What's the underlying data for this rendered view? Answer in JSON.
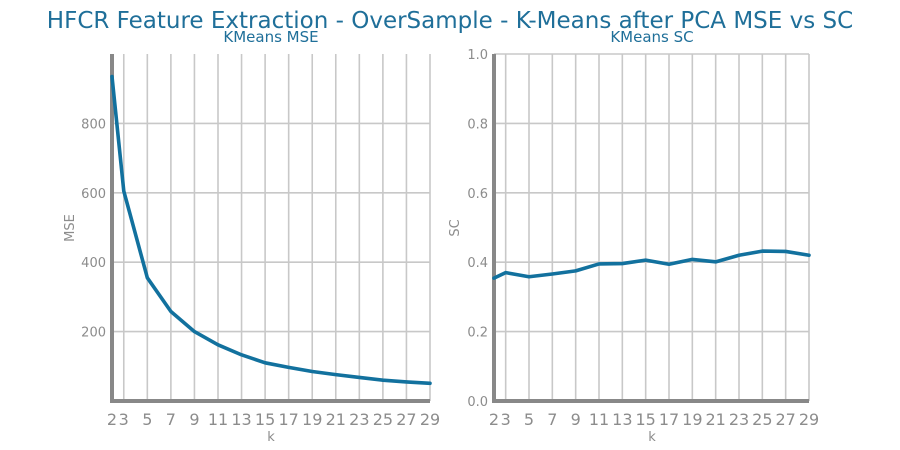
{
  "suptitle": "HFCR Feature Extraction - OverSample - K-Means after PCA MSE vs SC",
  "colors": {
    "line": "#12719e",
    "title": "#1f6f99",
    "text": "#8c8c8c",
    "grid": "#c8c8c8",
    "spine": "#888888"
  },
  "chart_data": [
    {
      "type": "line",
      "title": "KMeans MSE",
      "xlabel": "k",
      "ylabel": "MSE",
      "grid": true,
      "x": [
        2,
        3,
        5,
        7,
        9,
        11,
        13,
        15,
        17,
        19,
        21,
        23,
        25,
        27,
        29
      ],
      "x_ticks": [
        2,
        3,
        5,
        7,
        9,
        11,
        13,
        15,
        17,
        19,
        21,
        23,
        25,
        27,
        29
      ],
      "xlim": [
        2,
        29
      ],
      "ylim": [
        0,
        1000
      ],
      "y_ticks": [
        200,
        400,
        600,
        800
      ],
      "series": [
        {
          "values": [
            935,
            605,
            355,
            258,
            200,
            162,
            133,
            110,
            97,
            85,
            76,
            68,
            60,
            55,
            51
          ]
        }
      ]
    },
    {
      "type": "line",
      "title": "KMeans SC",
      "xlabel": "k",
      "ylabel": "SC",
      "grid": true,
      "x": [
        2,
        3,
        5,
        7,
        9,
        11,
        13,
        15,
        17,
        19,
        21,
        23,
        25,
        27,
        29
      ],
      "x_ticks": [
        2,
        3,
        5,
        7,
        9,
        11,
        13,
        15,
        17,
        19,
        21,
        23,
        25,
        27,
        29
      ],
      "xlim": [
        2,
        29
      ],
      "ylim": [
        0,
        1
      ],
      "y_ticks": [
        0.0,
        0.2,
        0.4,
        0.6,
        0.8,
        1.0
      ],
      "y_tick_labels": [
        "0.0",
        "0.2",
        "0.4",
        "0.6",
        "0.8",
        "1.0"
      ],
      "series": [
        {
          "values": [
            0.354,
            0.37,
            0.358,
            0.366,
            0.375,
            0.395,
            0.396,
            0.406,
            0.394,
            0.408,
            0.401,
            0.42,
            0.432,
            0.431,
            0.42
          ]
        }
      ]
    }
  ]
}
